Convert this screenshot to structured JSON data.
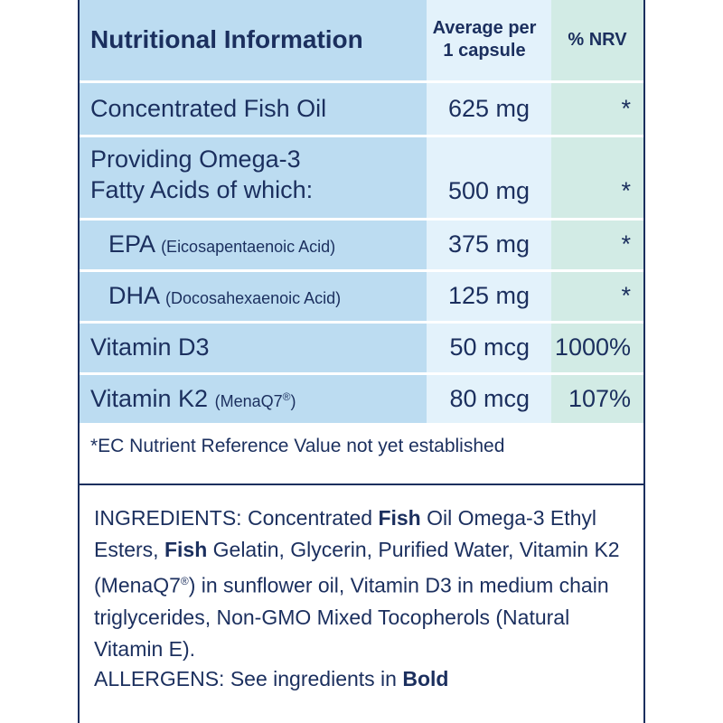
{
  "header": {
    "title": "Nutritional Information",
    "per_line1": "Average per",
    "per_line2": "1 capsule",
    "nrv": "% NRV"
  },
  "rows": [
    {
      "name": "Concentrated Fish Oil",
      "amount": "625 mg",
      "nrv": "*"
    },
    {
      "name_line1": "Providing Omega-3",
      "name_line2": "Fatty Acids of which:",
      "amount": "500 mg",
      "nrv": "*"
    },
    {
      "name": "EPA",
      "detail": "(Eicosapentaenoic Acid)",
      "amount": "375 mg",
      "nrv": "*"
    },
    {
      "name": "DHA",
      "detail": "(Docosahexaenoic Acid)",
      "amount": "125 mg",
      "nrv": "*"
    },
    {
      "name": "Vitamin D3",
      "amount": "50 mcg",
      "nrv": "1000%"
    },
    {
      "name": "Vitamin K2",
      "detail": "(MenaQ7",
      "detail_sup": "®",
      "detail_end": ")",
      "amount": "80 mcg",
      "nrv": "107%"
    }
  ],
  "footnote": "*EC Nutrient Reference Value not yet established",
  "ingredients": {
    "p1": "INGREDIENTS: Concentrated ",
    "b1": "Fish",
    "p2": " Oil Omega-3 Ethyl Esters, ",
    "b2": "Fish",
    "p3": " Gelatin, Glycerin, Purified Water, Vitamin K2 (MenaQ7",
    "sup": "®",
    "p4": ") in sunflower oil, Vitamin D3 in medium chain triglycerides, Non-GMO Mixed Tocopherols (Natural Vitamin E)."
  },
  "allergens": {
    "text": "ALLERGENS: See ingredients in ",
    "bold": "Bold"
  }
}
